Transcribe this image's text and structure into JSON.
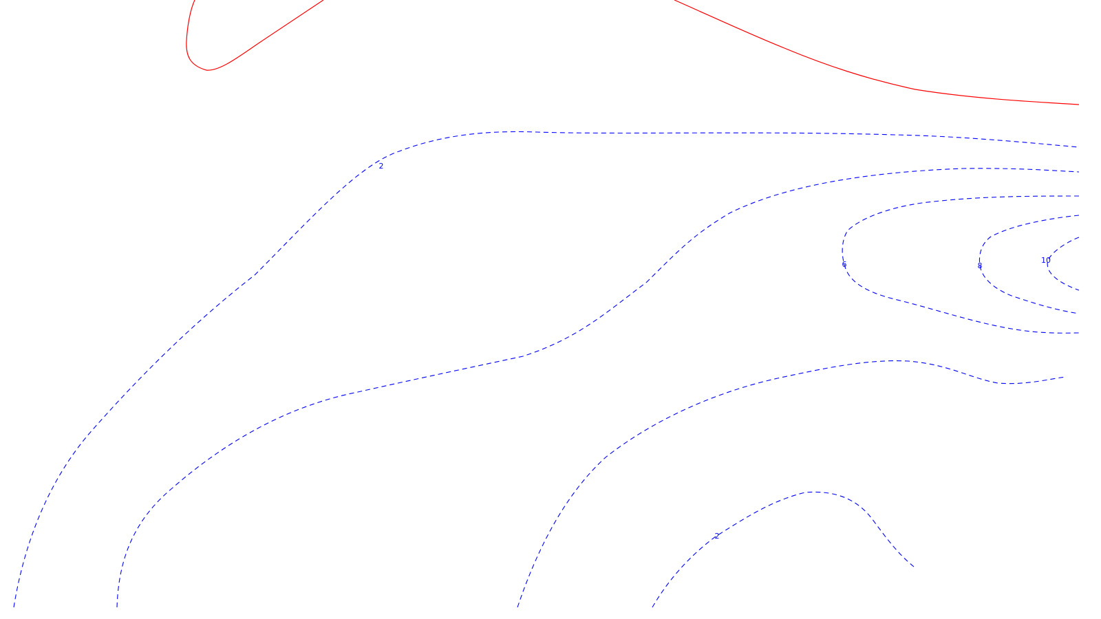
{
  "map": {
    "colors": {
      "background": "#ffffff",
      "solid_contour": "#ff0000",
      "dashed_contour": "#0000ff",
      "label": "#0000ff"
    },
    "contour_labels": [
      "2",
      "6",
      "8",
      "10",
      "2"
    ]
  }
}
